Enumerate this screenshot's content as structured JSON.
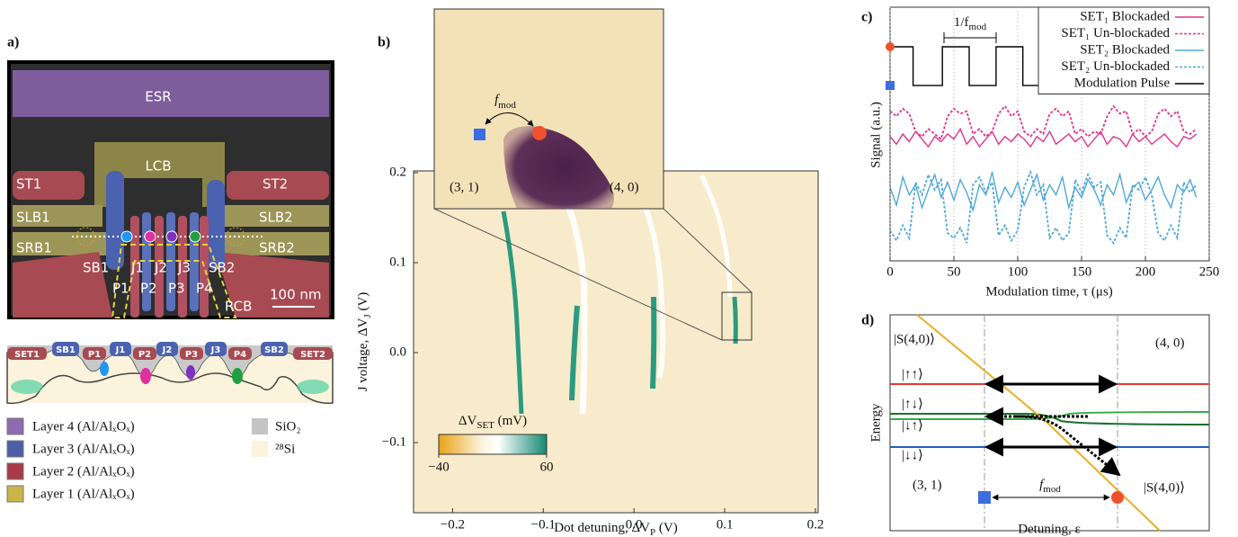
{
  "panel_a": {
    "label": "a)",
    "gate_labels": [
      "ESR",
      "LCB",
      "ST1",
      "ST2",
      "SLB1",
      "SLB2",
      "SRB1",
      "SRB2",
      "SB1",
      "J1",
      "J2",
      "J3",
      "SB2",
      "P1",
      "P2",
      "P3",
      "P4",
      "RCB"
    ],
    "scale_bar": "100 nm",
    "cross_section_labels": [
      "SET1",
      "SB1",
      "P1",
      "J1",
      "P2",
      "J2",
      "P3",
      "J3",
      "P4",
      "SB2",
      "SET2"
    ],
    "legend": [
      "Layer 4 (Al/AlₓOₓ)",
      "Layer 3 (Al/AlₓOₓ)",
      "Layer 2 (Al/AlₓOₓ)",
      "Layer 1 (Al/AlₓOₓ)"
    ],
    "materials": [
      "SiO₂",
      "²⁸Si"
    ]
  },
  "chart_data": [
    {
      "type": "heatmap",
      "panel_label": "b)",
      "xlabel": {
        "text": "Dot detuning, ΔV",
        "subscript": "P",
        "suffix": " (V)"
      },
      "ylabel": {
        "text": "J voltage, ΔV",
        "subscript": "J",
        "suffix": " (V)"
      },
      "xlim": [
        -0.243,
        0.203
      ],
      "xticks": [
        {
          "value": -0.2,
          "label": "−0.2"
        },
        {
          "value": -0.1,
          "label": "−0.1"
        },
        {
          "value": 0,
          "label": "0.0"
        },
        0.1,
        0.2
      ],
      "ylim": [
        -0.178,
        0.202
      ],
      "yticks": [
        {
          "value": -0.1,
          "label": "−0.1"
        },
        {
          "value": 0,
          "label": "0.0"
        },
        0.1,
        0.2
      ],
      "colorbar": {
        "label": {
          "text": "ΔV",
          "subscript": "SET",
          "suffix": " (mV)"
        },
        "lim": [
          -40,
          60
        ],
        "ticks": [
          {
            "value": -40,
            "label": "−40"
          },
          60
        ]
      },
      "inset": {
        "arrow_label": {
          "text": "f",
          "subscript": "mod"
        },
        "left_label": "(3, 1)",
        "right_label": "(4, 0)"
      }
    },
    {
      "type": "line",
      "panel_label": "c)",
      "xlabel": "Modulation time, τ (μs)",
      "ylabel": "Signal (a.u.)",
      "xlim": [
        0,
        250
      ],
      "xticks": [
        0,
        50,
        100,
        150,
        200,
        250
      ],
      "ylim": [
        0,
        10
      ],
      "grid": true,
      "legend": "upper right",
      "annotation": {
        "text": "1/f",
        "subscript": "mod"
      },
      "series": [
        {
          "name": "SET₁ Blockaded",
          "color": "#e0348c",
          "linestyle": "solid",
          "x": [
            0,
            5,
            10,
            15,
            20,
            25,
            30,
            35,
            40,
            45,
            50,
            55,
            60,
            65,
            70,
            75,
            80,
            85,
            90,
            95,
            100,
            105,
            110,
            115,
            120,
            125,
            130,
            135,
            140,
            145,
            150,
            155,
            160,
            165,
            170,
            175,
            180,
            185,
            190,
            195,
            200,
            205,
            210,
            215,
            220,
            225,
            230,
            235,
            240
          ],
          "values": [
            4.9,
            4.6,
            5.0,
            4.7,
            5.1,
            4.8,
            4.5,
            4.9,
            4.7,
            5.0,
            4.8,
            5.2,
            4.6,
            4.9,
            4.5,
            4.8,
            5.1,
            4.6,
            4.9,
            4.7,
            5.0,
            4.8,
            4.5,
            4.9,
            4.7,
            5.1,
            4.6,
            4.8,
            5.0,
            4.7,
            4.9,
            4.5,
            4.8,
            5.1,
            4.6,
            4.9,
            4.8,
            4.5,
            5.0,
            4.7,
            4.9,
            4.6,
            4.8,
            5.0,
            4.7,
            4.5,
            4.9,
            4.8,
            5.0
          ]
        },
        {
          "name": "SET₁ Un-blockaded",
          "color": "#e0348c",
          "linestyle": "dotted",
          "x": [
            0,
            5,
            10,
            15,
            20,
            25,
            30,
            35,
            40,
            45,
            50,
            55,
            60,
            65,
            70,
            75,
            80,
            85,
            90,
            95,
            100,
            105,
            110,
            115,
            120,
            125,
            130,
            135,
            140,
            145,
            150,
            155,
            160,
            165,
            170,
            175,
            180,
            185,
            190,
            195,
            200,
            205,
            210,
            215,
            220,
            225,
            230,
            235,
            240
          ],
          "values": [
            5.9,
            5.7,
            6.0,
            5.8,
            5.1,
            4.9,
            5.2,
            5.0,
            4.8,
            5.7,
            6.0,
            5.8,
            5.9,
            5.0,
            5.2,
            4.9,
            5.1,
            5.8,
            6.1,
            5.7,
            5.9,
            5.1,
            4.9,
            5.2,
            5.0,
            5.8,
            6.0,
            5.7,
            5.9,
            5.0,
            5.2,
            4.9,
            5.1,
            5.0,
            5.7,
            6.1,
            5.8,
            5.9,
            5.0,
            5.2,
            4.9,
            5.1,
            5.8,
            6.0,
            5.7,
            5.9,
            5.1,
            5.0,
            5.2
          ]
        },
        {
          "name": "SET₂ Blockaded",
          "color": "#4ea8d8",
          "linestyle": "solid",
          "x": [
            0,
            5,
            10,
            15,
            20,
            25,
            30,
            35,
            40,
            45,
            50,
            55,
            60,
            65,
            70,
            75,
            80,
            85,
            90,
            95,
            100,
            105,
            110,
            115,
            120,
            125,
            130,
            135,
            140,
            145,
            150,
            155,
            160,
            165,
            170,
            175,
            180,
            185,
            190,
            195,
            200,
            205,
            210,
            215,
            220,
            225,
            230,
            235,
            240
          ],
          "values": [
            2.9,
            2.2,
            3.3,
            2.6,
            3.0,
            2.1,
            2.8,
            3.4,
            2.5,
            3.1,
            2.4,
            3.2,
            2.7,
            2.0,
            3.0,
            2.6,
            3.5,
            2.3,
            2.9,
            2.5,
            3.1,
            2.2,
            2.8,
            3.4,
            2.4,
            3.0,
            2.6,
            3.3,
            2.1,
            2.9,
            2.5,
            3.2,
            2.8,
            2.2,
            3.0,
            2.6,
            3.4,
            2.3,
            2.9,
            3.1,
            2.4,
            2.8,
            3.3,
            2.6,
            2.1,
            3.0,
            2.7,
            3.2,
            2.5
          ]
        },
        {
          "name": "SET₂ Un-blockaded",
          "color": "#4ea8d8",
          "linestyle": "dotted",
          "x": [
            0,
            5,
            10,
            15,
            20,
            25,
            30,
            35,
            40,
            45,
            50,
            55,
            60,
            65,
            70,
            75,
            80,
            85,
            90,
            95,
            100,
            105,
            110,
            115,
            120,
            125,
            130,
            135,
            140,
            145,
            150,
            155,
            160,
            165,
            170,
            175,
            180,
            185,
            190,
            195,
            200,
            205,
            210,
            215,
            220,
            225,
            230,
            235,
            240
          ],
          "values": [
            1.2,
            0.8,
            1.4,
            0.9,
            3.1,
            2.6,
            3.4,
            2.8,
            3.2,
            1.1,
            0.9,
            1.3,
            0.7,
            3.0,
            3.3,
            2.7,
            3.1,
            1.0,
            1.4,
            0.8,
            1.2,
            2.9,
            3.5,
            2.6,
            3.0,
            0.9,
            1.3,
            0.8,
            1.1,
            3.2,
            2.7,
            3.4,
            2.9,
            3.1,
            1.0,
            0.7,
            1.3,
            0.9,
            3.0,
            2.8,
            3.3,
            2.6,
            1.1,
            0.8,
            1.4,
            0.9,
            3.1,
            2.7,
            3.0
          ]
        },
        {
          "name": "Modulation Pulse",
          "color": "#000000",
          "linestyle": "solid",
          "x": [
            0,
            18,
            18,
            41,
            41,
            62,
            62,
            83,
            83,
            104,
            104,
            125,
            125,
            146,
            146,
            167,
            167,
            188,
            188,
            209,
            209,
            230,
            230,
            240
          ],
          "values": [
            8.44,
            8.44,
            6.91,
            6.91,
            8.44,
            8.44,
            6.91,
            6.91,
            8.44,
            8.44,
            6.91,
            6.91,
            8.44,
            8.44,
            6.91,
            6.91,
            8.44,
            8.44,
            6.91,
            6.91,
            8.44,
            8.44,
            6.91,
            6.91
          ]
        }
      ]
    }
  ],
  "panel_d": {
    "label": "d)",
    "ylabel": "Energy",
    "xlabel": "Detuning, ε",
    "states": [
      "|S(4,0)⟩",
      "|↑↑⟩",
      "|↑↓⟩",
      "|↓↑⟩",
      "|↓↓⟩",
      "|S(4,0)⟩"
    ],
    "regions": [
      "(4, 0)",
      "(3, 1)"
    ],
    "arrow_label": {
      "text": "f",
      "subscript": "mod"
    }
  }
}
